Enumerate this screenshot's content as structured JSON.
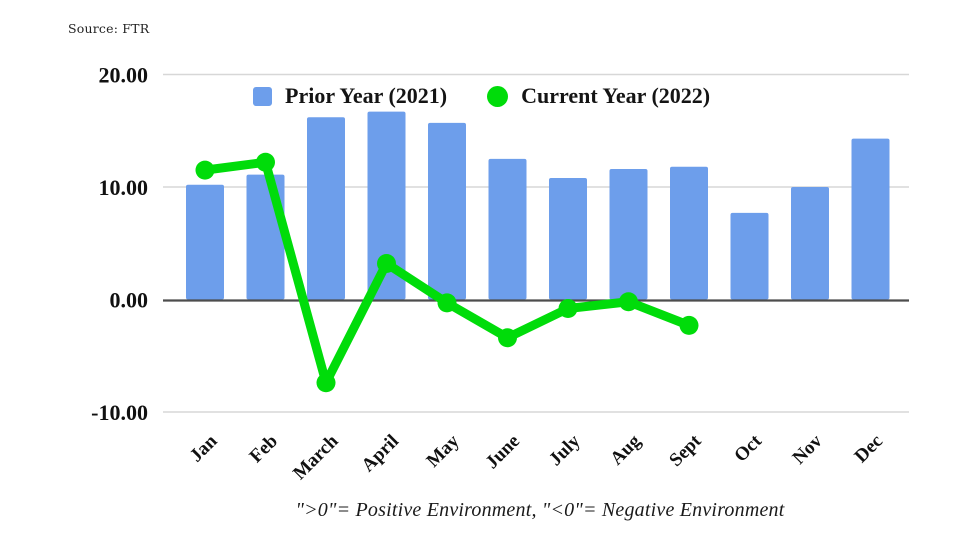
{
  "source_label": "Source: FTR",
  "caption": "\">0\"= Positive Environment, \"<0\"= Negative Environment",
  "legend": [
    {
      "label": "Prior Year (2021)",
      "color": "#6d9eeb",
      "shape": "square"
    },
    {
      "label": "Current Year (2022)",
      "color": "#00dc0a",
      "shape": "circle"
    }
  ],
  "chart_data": {
    "type": "combo",
    "categories": [
      "Jan",
      "Feb",
      "March",
      "April",
      "May",
      "June",
      "July",
      "Aug",
      "Sept",
      "Oct",
      "Nov",
      "Dec"
    ],
    "series": [
      {
        "name": "Prior Year (2021)",
        "type": "bar",
        "color": "#6d9eeb",
        "values": [
          10.2,
          11.1,
          16.2,
          16.7,
          15.7,
          12.5,
          10.8,
          11.6,
          11.8,
          7.7,
          10.0,
          14.3
        ]
      },
      {
        "name": "Current Year (2022)",
        "type": "line",
        "color": "#00dc0a",
        "values": [
          11.5,
          12.2,
          -7.4,
          3.2,
          -0.3,
          -3.4,
          -0.8,
          -0.2,
          -2.3,
          null,
          null,
          null
        ]
      }
    ],
    "ylim": [
      -10,
      20
    ],
    "yticks": [
      20,
      10,
      0,
      -10
    ],
    "ytick_decimals": 2,
    "grid": true,
    "gridline_color": "#d7d7d7",
    "zeroline_color": "#4d4d4d",
    "axis_text_color": "#111111",
    "legend_position": "top"
  }
}
